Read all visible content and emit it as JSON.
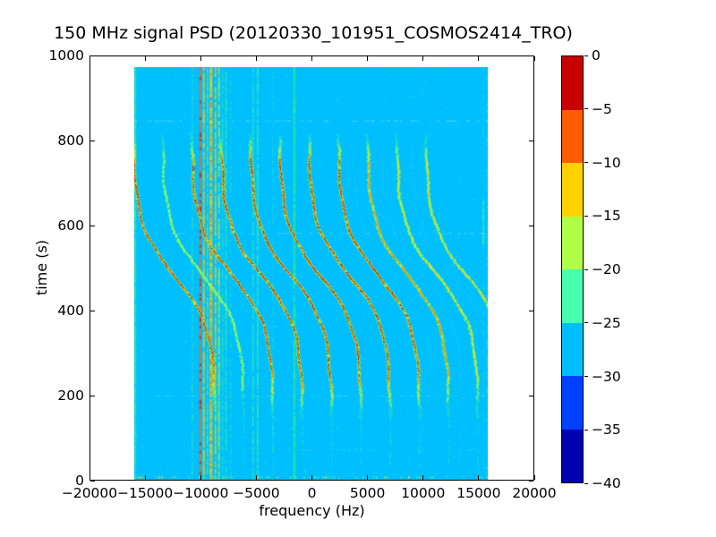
{
  "figure": {
    "title": "150 MHz signal PSD (20120330_101951_COSMOS2414_TRO)",
    "xlabel": "frequency (Hz)",
    "ylabel": "time (s)"
  },
  "chart_data": {
    "type": "heatmap",
    "title": "150 MHz signal PSD (20120330_101951_COSMOS2414_TRO)",
    "xlabel": "frequency (Hz)",
    "ylabel": "time (s)",
    "xlim": [
      -20000,
      20000
    ],
    "ylim": [
      0,
      1000
    ],
    "grid": false,
    "x_ticks": [
      -20000,
      -15000,
      -10000,
      -5000,
      0,
      5000,
      10000,
      15000,
      20000
    ],
    "x_tick_labels": [
      "−20000",
      "−15000",
      "−10000",
      "−5000",
      "0",
      "5000",
      "10000",
      "15000",
      "20000"
    ],
    "y_ticks": [
      0,
      200,
      400,
      600,
      800,
      1000
    ],
    "y_tick_labels": [
      "0",
      "200",
      "400",
      "600",
      "800",
      "1000"
    ],
    "data_extent": {
      "f_min": -16000,
      "f_max": 16000,
      "t_min": 0,
      "t_max": 972
    },
    "background_value_db": -27,
    "background_color": "#00BFFF",
    "colorbar": {
      "tick_labels": [
        "0",
        "−5",
        "−10",
        "−15",
        "−20",
        "−25",
        "−30",
        "−35",
        "−40"
      ],
      "tick_values": [
        0,
        -5,
        -10,
        -15,
        -20,
        -25,
        -30,
        -35,
        -40
      ],
      "segment_colors_top_to_bottom": [
        "#C80000",
        "#FF5C00",
        "#FFD200",
        "#AFFF48",
        "#48FFAF",
        "#00BFFF",
        "#0040FF",
        "#0000B1"
      ]
    },
    "doppler_model": {
      "amplitude_hz": 3700,
      "t_inflection_s": 480,
      "tau_s": 120,
      "t_visible": [
        145,
        812
      ],
      "tail_t_range": [
        30,
        150
      ]
    },
    "doppler_curves": [
      {
        "fc": -12350,
        "strength": 3.4
      },
      {
        "fc": -9750,
        "strength": 1.6
      },
      {
        "fc": -7100,
        "strength": 3.2
      },
      {
        "fc": -4450,
        "strength": 4.0
      },
      {
        "fc": -1800,
        "strength": 4.0
      },
      {
        "fc": 850,
        "strength": 4.0
      },
      {
        "fc": 3500,
        "strength": 4.0
      },
      {
        "fc": 6150,
        "strength": 3.8
      },
      {
        "fc": 8800,
        "strength": 3.0
      },
      {
        "fc": 11450,
        "strength": 2.2
      },
      {
        "fc": 14100,
        "strength": 2.0
      }
    ],
    "ghost_curves": [
      7450,
      10100,
      12750
    ],
    "curve_palette": {
      "green": "#3CF09B",
      "green_yellow": "#AFFF48",
      "yellow": "#FFD200",
      "orange": "#FF6A00",
      "red": "#D40000",
      "ghost": "rgba(110,240,185,0.4)"
    },
    "rfi_lines": [
      {
        "f": -15900,
        "color": "#3CF09B",
        "width": 2.0,
        "alpha": 0.8,
        "density": 0.92
      },
      {
        "f": -10750,
        "color": "#3CF09B",
        "width": 1.8,
        "alpha": 0.55,
        "density": 0.7
      },
      {
        "f": -10020,
        "color": "#FF6A00",
        "width": 2.0,
        "alpha": 0.85,
        "density": 0.95,
        "flecks": "#D40000"
      },
      {
        "f": -9700,
        "color": "#FFD200",
        "width": 2.0,
        "alpha": 0.8,
        "density": 0.9
      },
      {
        "f": -9380,
        "color": "#7FF06E",
        "width": 1.6,
        "alpha": 0.7,
        "density": 0.8
      },
      {
        "f": -9050,
        "color": "#FFD200",
        "width": 3.0,
        "alpha": 0.9,
        "density": 0.95,
        "flecks": "#FF6A00"
      },
      {
        "f": -8650,
        "color": "#FFD200",
        "width": 2.0,
        "alpha": 0.75,
        "density": 0.85
      },
      {
        "f": -8330,
        "color": "#AFFF48",
        "width": 2.0,
        "alpha": 0.7,
        "density": 0.85
      },
      {
        "f": -8010,
        "color": "#3CF09B",
        "width": 1.6,
        "alpha": 0.6,
        "density": 0.75
      },
      {
        "f": -7690,
        "color": "#3CF09B",
        "width": 2.0,
        "alpha": 0.7,
        "density": 0.8
      },
      {
        "f": -7280,
        "color": "#3CF09B",
        "width": 1.4,
        "alpha": 0.5,
        "density": 0.6
      },
      {
        "f": -5250,
        "color": "#3CF09B",
        "width": 1.8,
        "alpha": 0.7,
        "density": 0.85
      },
      {
        "f": -4830,
        "color": "#3CF09B",
        "width": 2.0,
        "alpha": 0.8,
        "density": 0.9
      },
      {
        "f": -3450,
        "color": "#3CF09B",
        "width": 1.4,
        "alpha": 0.45,
        "density": 0.5
      },
      {
        "f": -1500,
        "color": "#2EF08C",
        "width": 2.4,
        "alpha": 0.9,
        "density": 0.96
      },
      {
        "f": 10050,
        "color": "#7FE8C8",
        "width": 1.2,
        "alpha": 0.25,
        "density": 0.3
      },
      {
        "f": 13400,
        "color": "#7FE8C8",
        "width": 1.2,
        "alpha": 0.2,
        "density": 0.25
      },
      {
        "f": 15600,
        "color": "#3CF09B",
        "width": 2.0,
        "alpha": 0.3,
        "density": 0.35,
        "window": [
          555,
          660
        ]
      },
      {
        "f": 15900,
        "color": "#7FE8C8",
        "width": 1.5,
        "alpha": 0.3,
        "density": 0.3
      }
    ],
    "artifact_rows": [
      {
        "t": 845,
        "alpha": 0.55,
        "x_range": [
          0,
          1
        ]
      },
      {
        "t": 580,
        "alpha": 0.4,
        "x_range": [
          0,
          1
        ]
      },
      {
        "t": 197,
        "alpha": 0.3,
        "x_range": [
          0.05,
          1
        ]
      },
      {
        "t": 70,
        "alpha": 0.25,
        "x_range": [
          0.45,
          1
        ]
      }
    ],
    "bottom_speckle_row_t": 6,
    "noise_speckles": 320
  }
}
